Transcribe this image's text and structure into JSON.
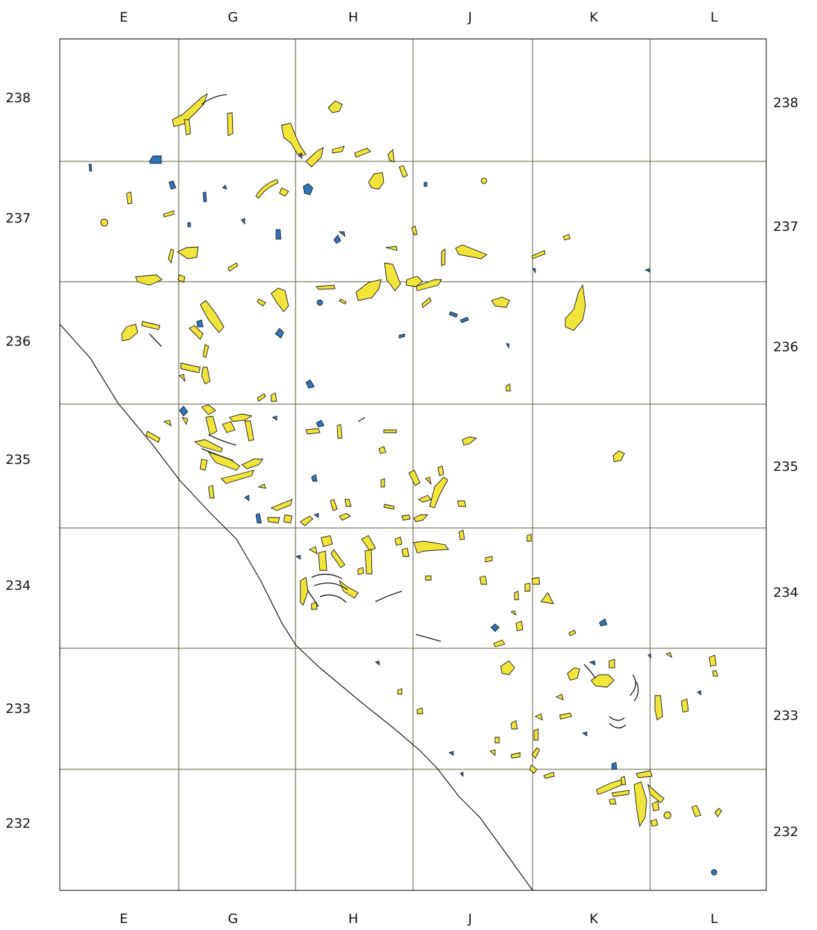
{
  "map": {
    "columns": [
      "E",
      "G",
      "H",
      "J",
      "K",
      "L"
    ],
    "rows": [
      "238",
      "237",
      "236",
      "235",
      "234",
      "233",
      "232"
    ],
    "colors": {
      "bone_fill": "#f1e43a",
      "stone_fill": "#2f72b6",
      "grid_line": "#55563c",
      "outline": "#111111",
      "background": "#ffffff"
    }
  }
}
